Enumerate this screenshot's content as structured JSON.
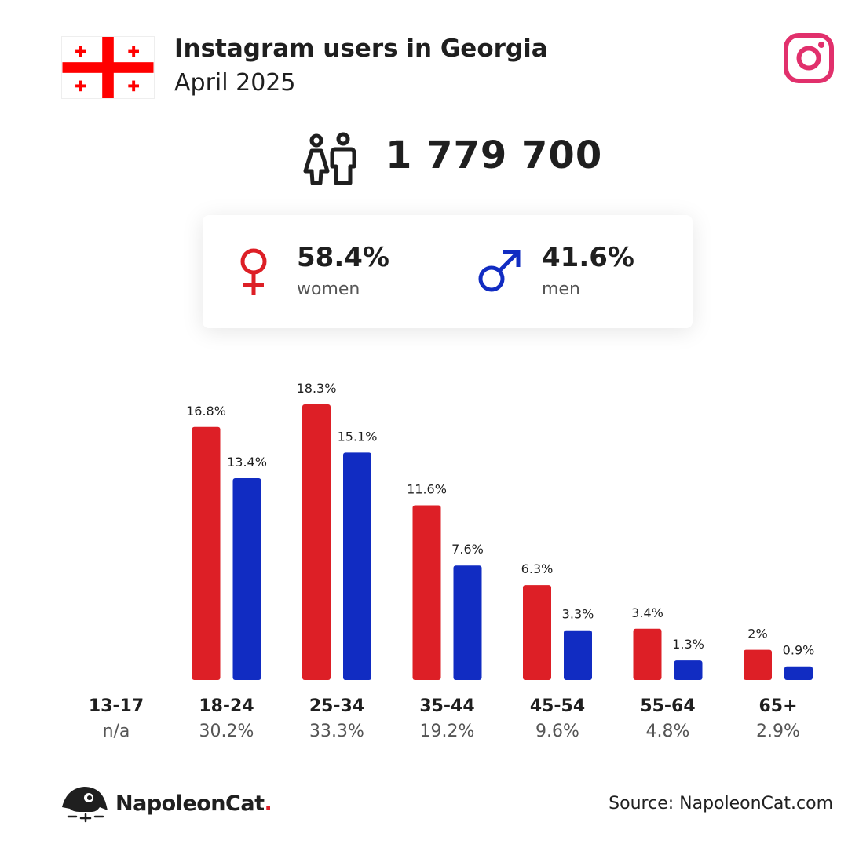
{
  "header": {
    "title": "Instagram users in Georgia",
    "subtitle": "April 2025"
  },
  "icons": {
    "flag": "georgia-flag-icon",
    "brand": "instagram-icon",
    "users": "users-icon",
    "female": "female-symbol-icon",
    "male": "male-symbol-icon",
    "logo": "napoleoncat-logo-icon"
  },
  "total_users": "1 779 700",
  "gender": {
    "women_pct": "58.4%",
    "women_label": "women",
    "men_pct": "41.6%",
    "men_label": "men"
  },
  "colors": {
    "women": "#dd1f26",
    "men": "#112cc2",
    "instagram": "#e1306c",
    "flag_red": "#ff0000"
  },
  "chart_data": {
    "type": "bar",
    "categories": [
      "13-17",
      "18-24",
      "25-34",
      "35-44",
      "45-54",
      "55-64",
      "65+"
    ],
    "category_totals": [
      "n/a",
      "30.2%",
      "33.3%",
      "19.2%",
      "9.6%",
      "4.8%",
      "2.9%"
    ],
    "series": [
      {
        "name": "women",
        "values": [
          null,
          16.8,
          18.3,
          11.6,
          6.3,
          3.4,
          2
        ],
        "labels": [
          "",
          "16.8%",
          "18.3%",
          "11.6%",
          "6.3%",
          "3.4%",
          "2%"
        ]
      },
      {
        "name": "men",
        "values": [
          null,
          13.4,
          15.1,
          7.6,
          3.3,
          1.3,
          0.9
        ],
        "labels": [
          "",
          "13.4%",
          "15.1%",
          "7.6%",
          "3.3%",
          "1.3%",
          "0.9%"
        ]
      }
    ],
    "ylim": [
      0,
      18.3
    ],
    "grid": false
  },
  "footer": {
    "brand_name": "NapoleonCat",
    "brand_dot": ".",
    "source": "Source: NapoleonCat.com"
  }
}
